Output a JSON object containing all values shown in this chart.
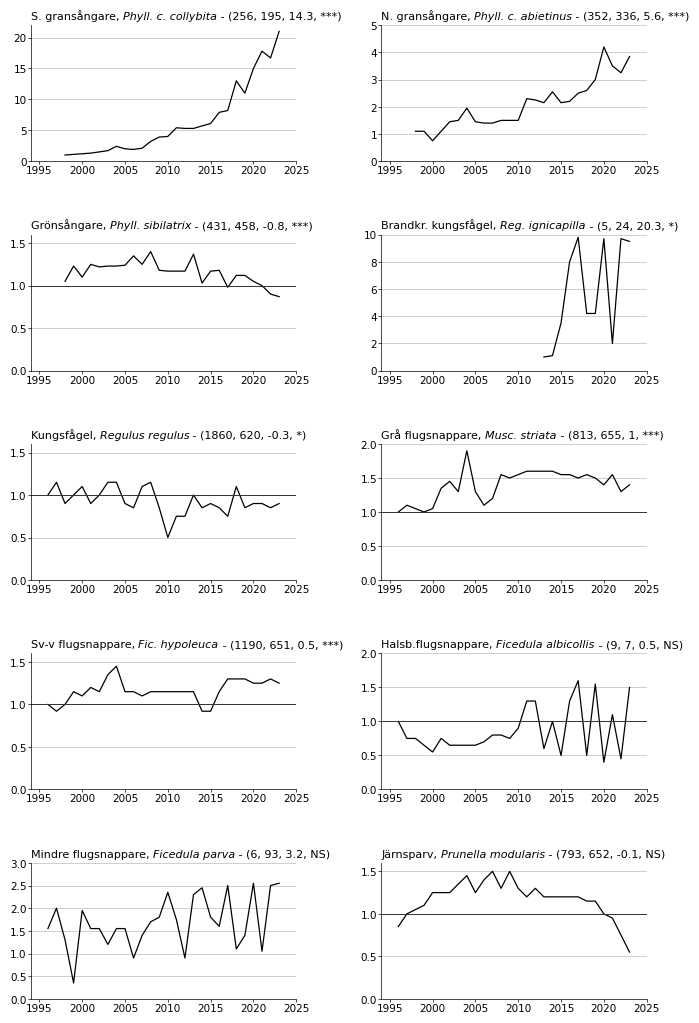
{
  "plots": [
    {
      "title_normal": "S. gransångare, ",
      "title_italic": "Phyll. c. collybita",
      "title_suffix": " - (256, 195, 14.3, ***)",
      "years": [
        1998,
        1999,
        2000,
        2001,
        2002,
        2003,
        2004,
        2005,
        2006,
        2007,
        2008,
        2009,
        2010,
        2011,
        2012,
        2013,
        2014,
        2015,
        2016,
        2017,
        2018,
        2019,
        2020,
        2021,
        2022,
        2023
      ],
      "values": [
        1.0,
        1.1,
        1.2,
        1.3,
        1.5,
        1.7,
        2.4,
        2.0,
        1.9,
        2.1,
        3.2,
        3.9,
        4.0,
        5.4,
        5.3,
        5.3,
        5.7,
        6.1,
        7.9,
        8.2,
        13.0,
        11.0,
        15.0,
        17.8,
        16.7,
        21.0
      ],
      "ylim": [
        0,
        22
      ],
      "yticks": [
        0,
        5,
        10,
        15,
        20
      ],
      "hline": null
    },
    {
      "title_normal": "N. gransångare, ",
      "title_italic": "Phyll. c. abietinus",
      "title_suffix": " - (352, 336, 5.6, ***)",
      "years": [
        1998,
        1999,
        2000,
        2001,
        2002,
        2003,
        2004,
        2005,
        2006,
        2007,
        2008,
        2009,
        2010,
        2011,
        2012,
        2013,
        2014,
        2015,
        2016,
        2017,
        2018,
        2019,
        2020,
        2021,
        2022,
        2023
      ],
      "values": [
        1.1,
        1.1,
        0.75,
        1.1,
        1.45,
        1.5,
        1.95,
        1.45,
        1.4,
        1.4,
        1.5,
        1.5,
        1.5,
        2.3,
        2.25,
        2.15,
        2.55,
        2.15,
        2.2,
        2.5,
        2.6,
        3.0,
        4.2,
        3.5,
        3.25,
        3.85
      ],
      "ylim": [
        0,
        5
      ],
      "yticks": [
        0,
        1,
        2,
        3,
        4,
        5
      ],
      "hline": null
    },
    {
      "title_normal": "Grönsångare, ",
      "title_italic": "Phyll. sibilatrix",
      "title_suffix": " - (431, 458, -0.8, ***)",
      "years": [
        1998,
        1999,
        2000,
        2001,
        2002,
        2003,
        2004,
        2005,
        2006,
        2007,
        2008,
        2009,
        2010,
        2011,
        2012,
        2013,
        2014,
        2015,
        2016,
        2017,
        2018,
        2019,
        2020,
        2021,
        2022,
        2023
      ],
      "values": [
        1.05,
        1.23,
        1.1,
        1.25,
        1.22,
        1.23,
        1.23,
        1.24,
        1.35,
        1.25,
        1.4,
        1.18,
        1.17,
        1.17,
        1.17,
        1.37,
        1.03,
        1.17,
        1.18,
        0.98,
        1.12,
        1.12,
        1.05,
        1.0,
        0.9,
        0.87
      ],
      "ylim": [
        0.0,
        1.6
      ],
      "yticks": [
        0.0,
        0.5,
        1.0,
        1.5
      ],
      "hline": 1.0
    },
    {
      "title_normal": "Brandkr. kungsfågel, ",
      "title_italic": "Reg. ignicapilla",
      "title_suffix": " - (5, 24, 20.3, *)",
      "years": [
        2013,
        2014,
        2015,
        2016,
        2017,
        2018,
        2019,
        2020,
        2021,
        2022,
        2023
      ],
      "values": [
        1.0,
        1.1,
        3.5,
        8.0,
        9.8,
        4.2,
        4.2,
        9.7,
        2.0,
        9.7,
        9.5
      ],
      "ylim": [
        0,
        10
      ],
      "yticks": [
        0,
        2,
        4,
        6,
        8,
        10
      ],
      "hline": null
    },
    {
      "title_normal": "Kungsfågel, ",
      "title_italic": "Regulus regulus",
      "title_suffix": " - (1860, 620, -0.3, *)",
      "years": [
        1996,
        1997,
        1998,
        1999,
        2000,
        2001,
        2002,
        2003,
        2004,
        2005,
        2006,
        2007,
        2008,
        2009,
        2010,
        2011,
        2012,
        2013,
        2014,
        2015,
        2016,
        2017,
        2018,
        2019,
        2020,
        2021,
        2022,
        2023
      ],
      "values": [
        1.0,
        1.15,
        0.9,
        1.0,
        1.1,
        0.9,
        1.0,
        1.15,
        1.15,
        0.9,
        0.85,
        1.1,
        1.15,
        0.85,
        0.5,
        0.75,
        0.75,
        1.0,
        0.85,
        0.9,
        0.85,
        0.75,
        1.1,
        0.85,
        0.9,
        0.9,
        0.85,
        0.9
      ],
      "ylim": [
        0.0,
        1.6
      ],
      "yticks": [
        0.0,
        0.5,
        1.0,
        1.5
      ],
      "hline": 1.0
    },
    {
      "title_normal": "Grå flugsnappare, ",
      "title_italic": "Musc. striata",
      "title_suffix": " - (813, 655, 1, ***)",
      "years": [
        1996,
        1997,
        1998,
        1999,
        2000,
        2001,
        2002,
        2003,
        2004,
        2005,
        2006,
        2007,
        2008,
        2009,
        2010,
        2011,
        2012,
        2013,
        2014,
        2015,
        2016,
        2017,
        2018,
        2019,
        2020,
        2021,
        2022,
        2023
      ],
      "values": [
        1.0,
        1.1,
        1.05,
        1.0,
        1.05,
        1.35,
        1.45,
        1.3,
        1.9,
        1.3,
        1.1,
        1.2,
        1.55,
        1.5,
        1.55,
        1.6,
        1.6,
        1.6,
        1.6,
        1.55,
        1.55,
        1.5,
        1.55,
        1.5,
        1.4,
        1.55,
        1.3,
        1.4
      ],
      "ylim": [
        0.0,
        2.0
      ],
      "yticks": [
        0.0,
        0.5,
        1.0,
        1.5,
        2.0
      ],
      "hline": 1.0
    },
    {
      "title_normal": "Sv-v flugsnappare, ",
      "title_italic": "Fic. hypoleuca",
      "title_suffix": " - (1190, 651, 0.5, ***)",
      "years": [
        1996,
        1997,
        1998,
        1999,
        2000,
        2001,
        2002,
        2003,
        2004,
        2005,
        2006,
        2007,
        2008,
        2009,
        2010,
        2011,
        2012,
        2013,
        2014,
        2015,
        2016,
        2017,
        2018,
        2019,
        2020,
        2021,
        2022,
        2023
      ],
      "values": [
        1.0,
        0.92,
        1.0,
        1.15,
        1.1,
        1.2,
        1.15,
        1.35,
        1.45,
        1.15,
        1.15,
        1.1,
        1.15,
        1.15,
        1.15,
        1.15,
        1.15,
        1.15,
        0.92,
        0.92,
        1.15,
        1.3,
        1.3,
        1.3,
        1.25,
        1.25,
        1.3,
        1.25
      ],
      "ylim": [
        0.0,
        1.6
      ],
      "yticks": [
        0.0,
        0.5,
        1.0,
        1.5
      ],
      "hline": 1.0
    },
    {
      "title_normal": "Halsb.flugsnappare, ",
      "title_italic": "Ficedula albicollis",
      "title_suffix": " - (9, 7, 0.5, NS)",
      "years": [
        1996,
        1997,
        1998,
        1999,
        2000,
        2001,
        2002,
        2003,
        2004,
        2005,
        2006,
        2007,
        2008,
        2009,
        2010,
        2011,
        2012,
        2013,
        2014,
        2015,
        2016,
        2017,
        2018,
        2019,
        2020,
        2021,
        2022,
        2023
      ],
      "values": [
        1.0,
        0.75,
        0.75,
        0.65,
        0.55,
        0.75,
        0.65,
        0.65,
        0.65,
        0.65,
        0.7,
        0.8,
        0.8,
        0.75,
        0.9,
        1.3,
        1.3,
        0.6,
        1.0,
        0.5,
        1.3,
        1.6,
        0.5,
        1.55,
        0.4,
        1.1,
        0.45,
        1.5
      ],
      "ylim": [
        0.0,
        2.0
      ],
      "yticks": [
        0.0,
        0.5,
        1.0,
        1.5,
        2.0
      ],
      "hline": 1.0
    },
    {
      "title_normal": "Mindre flugsnappare, ",
      "title_italic": "Ficedula parva",
      "title_suffix": " - (6, 93, 3.2, NS)",
      "years": [
        1996,
        1997,
        1998,
        1999,
        2000,
        2001,
        2002,
        2003,
        2004,
        2005,
        2006,
        2007,
        2008,
        2009,
        2010,
        2011,
        2012,
        2013,
        2014,
        2015,
        2016,
        2017,
        2018,
        2019,
        2020,
        2021,
        2022,
        2023
      ],
      "values": [
        1.55,
        2.0,
        1.3,
        0.35,
        1.95,
        1.55,
        1.55,
        1.2,
        1.55,
        1.55,
        0.9,
        1.4,
        1.7,
        1.8,
        2.35,
        1.75,
        0.9,
        2.3,
        2.45,
        1.8,
        1.6,
        2.5,
        1.1,
        1.4,
        2.55,
        1.05,
        2.5,
        2.55
      ],
      "ylim": [
        0.0,
        3.0
      ],
      "yticks": [
        0.0,
        0.5,
        1.0,
        1.5,
        2.0,
        2.5,
        3.0
      ],
      "hline": null
    },
    {
      "title_normal": "Järnsparv, ",
      "title_italic": "Prunella modularis",
      "title_suffix": " - (793, 652, -0.1, NS)",
      "years": [
        1996,
        1997,
        1998,
        1999,
        2000,
        2001,
        2002,
        2003,
        2004,
        2005,
        2006,
        2007,
        2008,
        2009,
        2010,
        2011,
        2012,
        2013,
        2014,
        2015,
        2016,
        2017,
        2018,
        2019,
        2020,
        2021,
        2022,
        2023
      ],
      "values": [
        0.85,
        1.0,
        1.05,
        1.1,
        1.25,
        1.25,
        1.25,
        1.35,
        1.45,
        1.25,
        1.4,
        1.5,
        1.3,
        1.5,
        1.3,
        1.2,
        1.3,
        1.2,
        1.2,
        1.2,
        1.2,
        1.2,
        1.15,
        1.15,
        1.0,
        0.95,
        0.75,
        0.55
      ],
      "ylim": [
        0.0,
        1.6
      ],
      "yticks": [
        0.0,
        0.5,
        1.0,
        1.5
      ],
      "hline": 1.0
    }
  ],
  "xlim": [
    1994,
    2025
  ],
  "xticks": [
    1995,
    2000,
    2005,
    2010,
    2015,
    2020,
    2025
  ],
  "title_color": "#000000",
  "line_color": "#000000",
  "grid_color": "#000000",
  "bg_color": "#ffffff",
  "title_fontsize": 8.0,
  "tick_fontsize": 7.5
}
